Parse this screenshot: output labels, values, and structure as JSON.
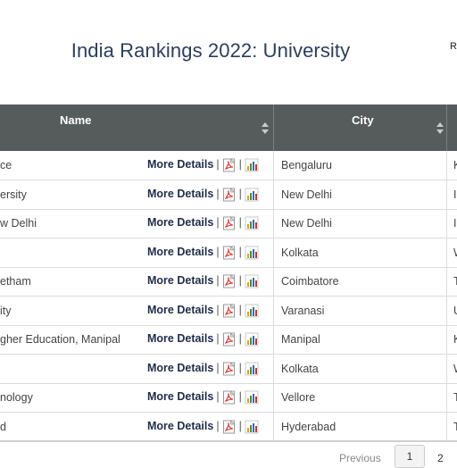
{
  "header": {
    "title": "India Rankings 2022: University",
    "corner_text": "R"
  },
  "table": {
    "columns": {
      "name": "Name",
      "city": "City"
    },
    "action_label": "More Details",
    "separator": "|",
    "rows": [
      {
        "name": "ce",
        "city": "Bengaluru",
        "state": "K"
      },
      {
        "name": "ersity",
        "city": "New Delhi",
        "state": "I"
      },
      {
        "name": "w Delhi",
        "city": "New Delhi",
        "state": "I"
      },
      {
        "name": "",
        "city": "Kolkata",
        "state": "W"
      },
      {
        "name": "etham",
        "city": "Coimbatore",
        "state": "T"
      },
      {
        "name": "ity",
        "city": "Varanasi",
        "state": "U"
      },
      {
        "name": "gher Education, Manipal",
        "city": "Manipal",
        "state": "K"
      },
      {
        "name": "",
        "city": "Kolkata",
        "state": "W"
      },
      {
        "name": "nology",
        "city": "Vellore",
        "state": "T"
      },
      {
        "name": "d",
        "city": "Hyderabad",
        "state": "T"
      }
    ]
  },
  "pagination": {
    "previous": "Previous",
    "current": "1",
    "next_page": "2"
  },
  "colors": {
    "header_bg": "#565c5c",
    "title": "#2c3e5c",
    "link": "#1f2d4a",
    "pdf_red": "#d9322b"
  }
}
